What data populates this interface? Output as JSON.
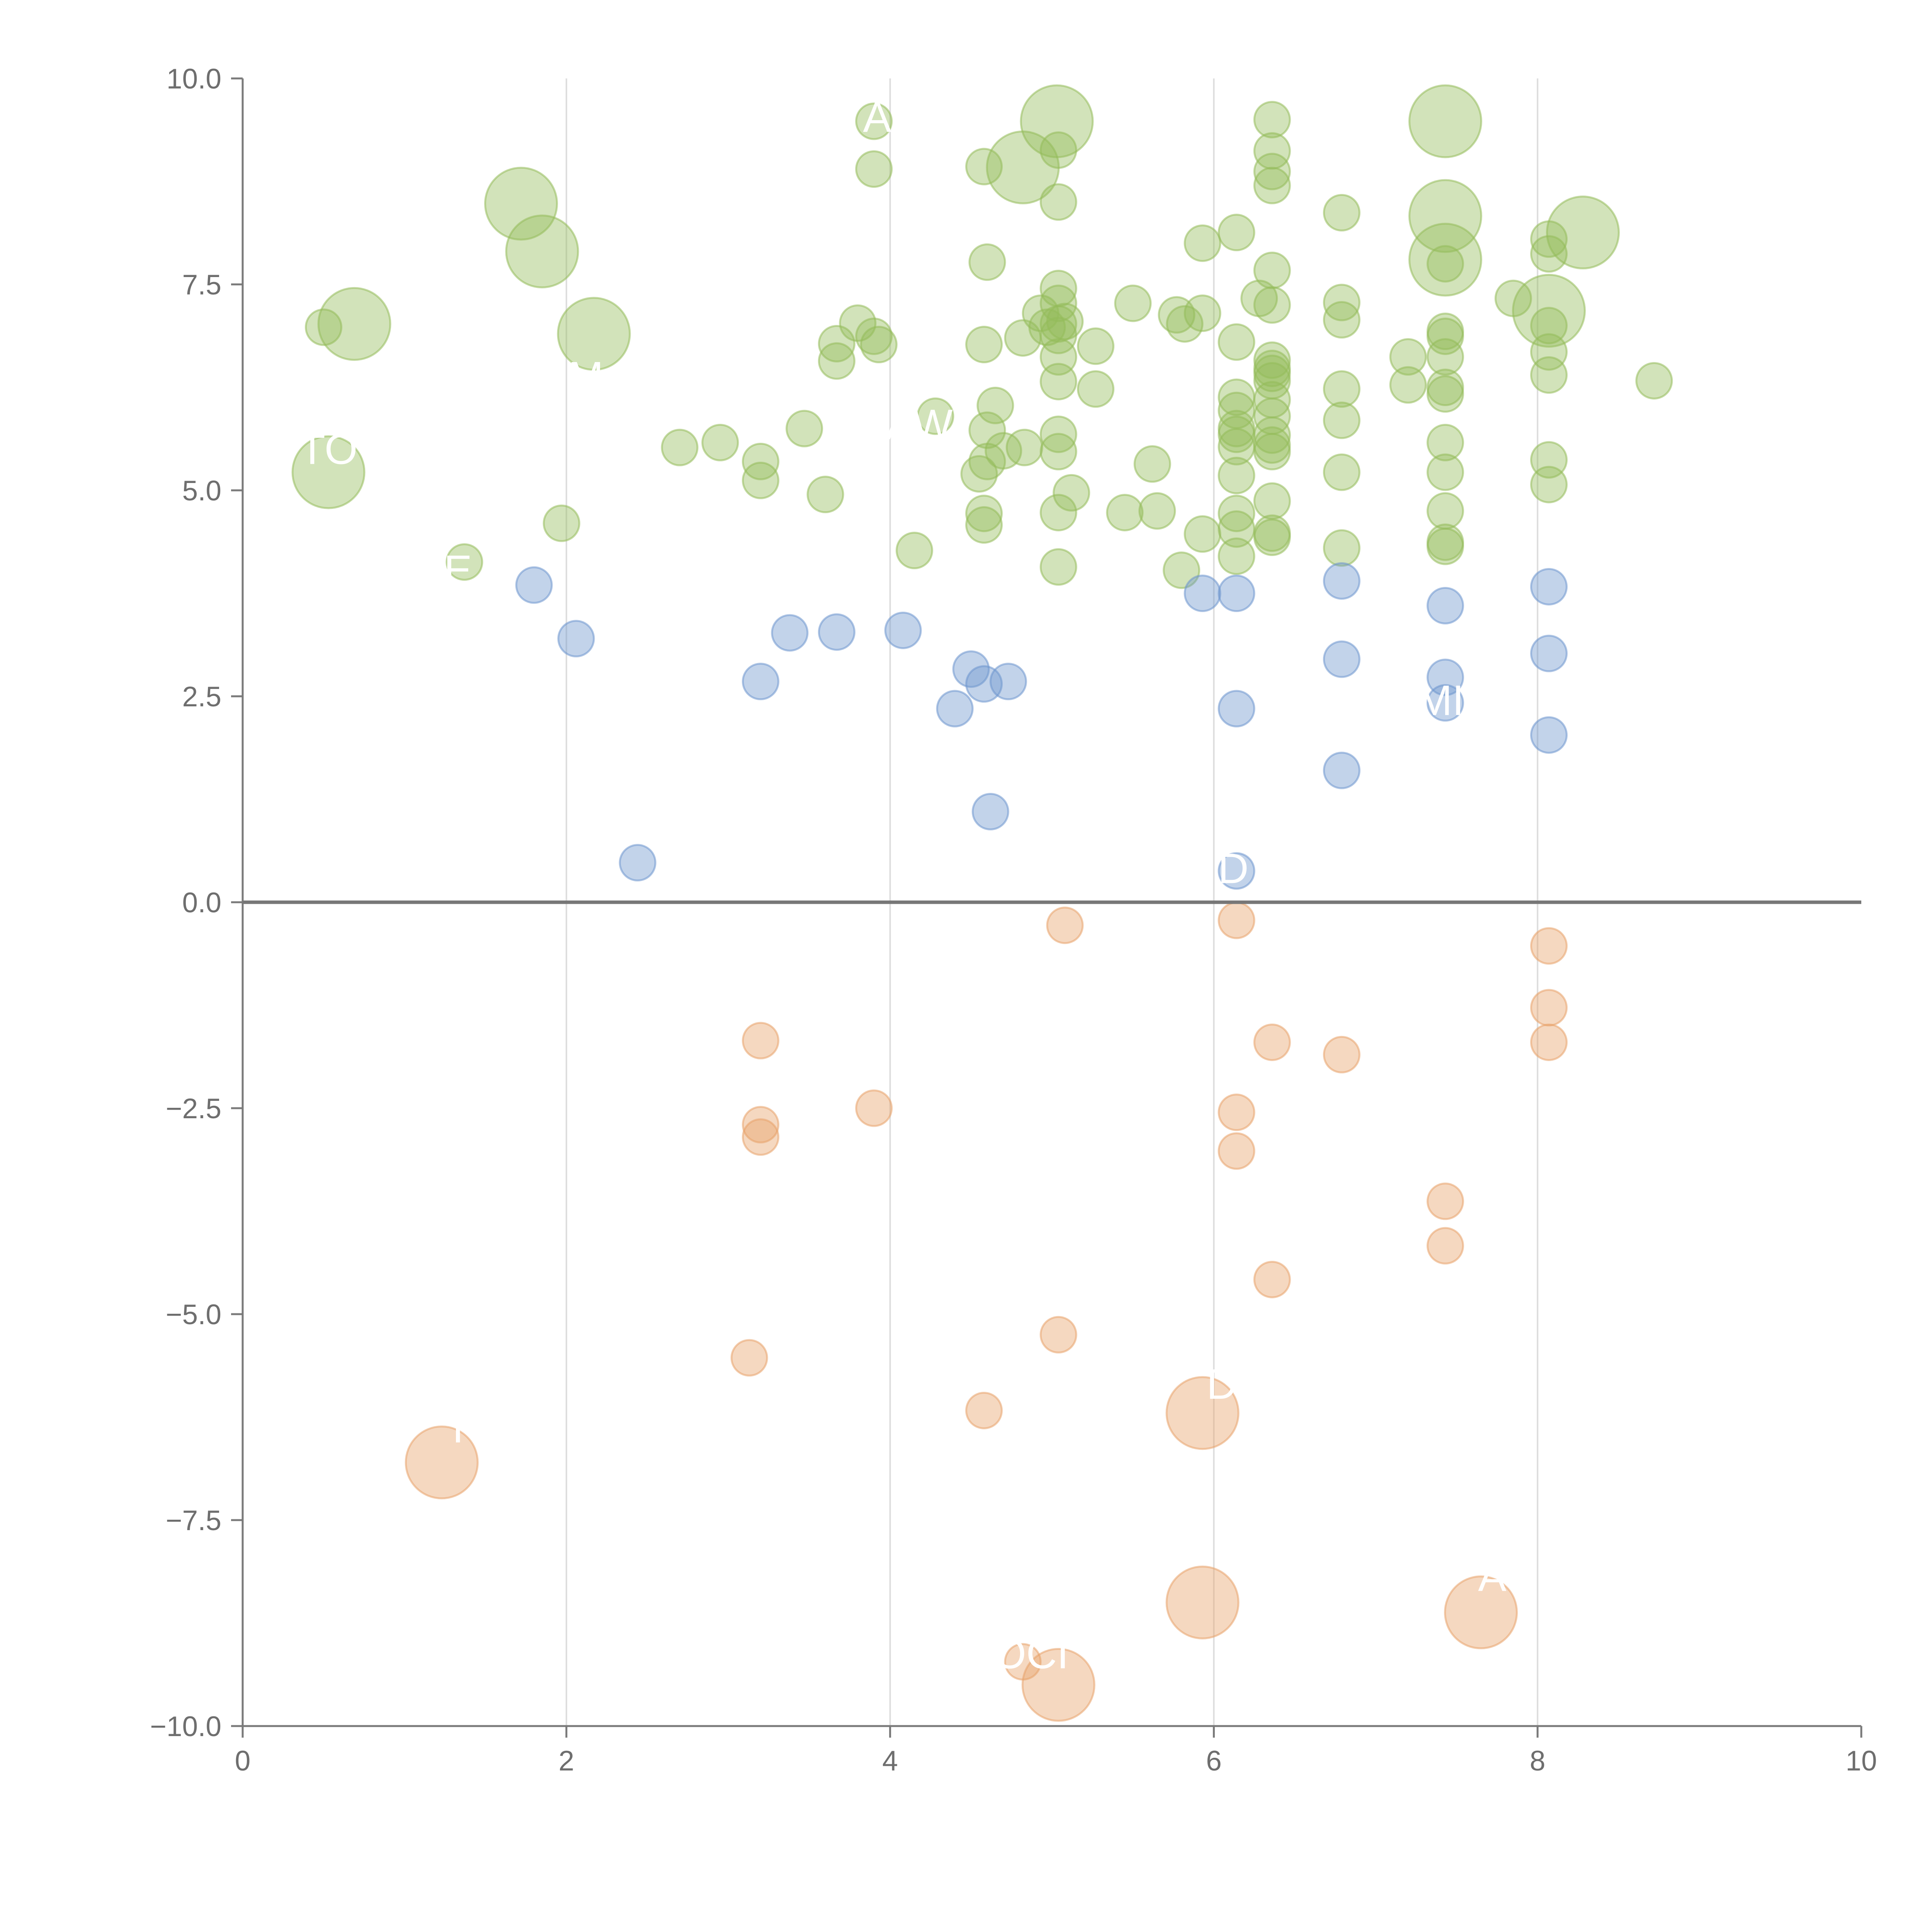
{
  "chart_data": {
    "type": "scatter",
    "title": "",
    "xlabel": "",
    "ylabel": "",
    "xlim": [
      0,
      10
    ],
    "ylim": [
      -10,
      10
    ],
    "x_ticks": [
      "0",
      "2",
      "4",
      "6",
      "8",
      "10"
    ],
    "y_ticks": [
      "10.0",
      "7.5",
      "5.0",
      "2.5",
      "0.0",
      "−2.5",
      "−5.0",
      "−7.5",
      "−10.0"
    ],
    "x_tick_values": [
      0,
      2,
      4,
      6,
      8,
      10
    ],
    "y_tick_values": [
      10,
      7.5,
      5,
      2.5,
      0,
      -2.5,
      -5,
      -7.5,
      -10
    ],
    "vertical_gridlines": [
      2,
      4,
      6,
      8
    ],
    "reference_line": 0,
    "colors": {
      "positive_strong": "#93bc5a",
      "positive_weak": "#6d95cd",
      "negative": "#e8a269",
      "axis": "#7a7a7a",
      "grid": "#dddddd",
      "zero_line": "#777777",
      "label": "#ffffff"
    },
    "series": [
      {
        "name": "positive_strong",
        "color": "#93bc5a",
        "points": [
          {
            "x": 0.5,
            "y": 6.98,
            "r": "s"
          },
          {
            "x": 0.69,
            "y": 7.02,
            "r": "L"
          },
          {
            "x": 0.53,
            "y": 5.22,
            "r": "L"
          },
          {
            "x": 1.37,
            "y": 4.13,
            "r": "s"
          },
          {
            "x": 1.72,
            "y": 8.48,
            "r": "L"
          },
          {
            "x": 1.85,
            "y": 7.9,
            "r": "L"
          },
          {
            "x": 1.97,
            "y": 4.6,
            "r": "s"
          },
          {
            "x": 2.17,
            "y": 6.9,
            "r": "L"
          },
          {
            "x": 2.7,
            "y": 5.52,
            "r": "s"
          },
          {
            "x": 2.95,
            "y": 5.58,
            "r": "s"
          },
          {
            "x": 3.2,
            "y": 5.35,
            "r": "s"
          },
          {
            "x": 3.2,
            "y": 5.12,
            "r": "s"
          },
          {
            "x": 3.47,
            "y": 5.75,
            "r": "s"
          },
          {
            "x": 3.6,
            "y": 4.95,
            "r": "s"
          },
          {
            "x": 3.67,
            "y": 6.78,
            "r": "s"
          },
          {
            "x": 3.67,
            "y": 6.57,
            "r": "s"
          },
          {
            "x": 3.8,
            "y": 7.03,
            "r": "s"
          },
          {
            "x": 3.9,
            "y": 9.48,
            "r": "s"
          },
          {
            "x": 3.9,
            "y": 8.9,
            "r": "s"
          },
          {
            "x": 3.9,
            "y": 6.87,
            "r": "s"
          },
          {
            "x": 3.93,
            "y": 6.77,
            "r": "s"
          },
          {
            "x": 4.15,
            "y": 4.27,
            "r": "s"
          },
          {
            "x": 4.28,
            "y": 5.9,
            "r": "s"
          },
          {
            "x": 4.58,
            "y": 8.93,
            "r": "s"
          },
          {
            "x": 4.6,
            "y": 7.77,
            "r": "s"
          },
          {
            "x": 4.58,
            "y": 6.77,
            "r": "s"
          },
          {
            "x": 4.6,
            "y": 5.73,
            "r": "s"
          },
          {
            "x": 4.6,
            "y": 5.35,
            "r": "s"
          },
          {
            "x": 4.55,
            "y": 5.2,
            "r": "s"
          },
          {
            "x": 4.58,
            "y": 4.72,
            "r": "s"
          },
          {
            "x": 4.58,
            "y": 4.58,
            "r": "s"
          },
          {
            "x": 4.65,
            "y": 6.03,
            "r": "s"
          },
          {
            "x": 4.7,
            "y": 5.48,
            "r": "s"
          },
          {
            "x": 4.82,
            "y": 6.85,
            "r": "s"
          },
          {
            "x": 4.83,
            "y": 5.52,
            "r": "s"
          },
          {
            "x": 4.82,
            "y": 8.92,
            "r": "L"
          },
          {
            "x": 4.93,
            "y": 7.15,
            "r": "s"
          },
          {
            "x": 4.97,
            "y": 6.98,
            "r": "s"
          },
          {
            "x": 5.03,
            "y": 9.48,
            "r": "L"
          },
          {
            "x": 5.04,
            "y": 9.13,
            "r": "s"
          },
          {
            "x": 5.04,
            "y": 8.5,
            "r": "s"
          },
          {
            "x": 5.04,
            "y": 7.45,
            "r": "s"
          },
          {
            "x": 5.04,
            "y": 7.27,
            "r": "s"
          },
          {
            "x": 5.04,
            "y": 7.02,
            "r": "s"
          },
          {
            "x": 5.04,
            "y": 6.88,
            "r": "s"
          },
          {
            "x": 5.04,
            "y": 6.62,
            "r": "s"
          },
          {
            "x": 5.04,
            "y": 6.32,
            "r": "s"
          },
          {
            "x": 5.04,
            "y": 5.68,
            "r": "s"
          },
          {
            "x": 5.04,
            "y": 5.47,
            "r": "s"
          },
          {
            "x": 5.04,
            "y": 4.73,
            "r": "s"
          },
          {
            "x": 5.04,
            "y": 4.07,
            "r": "s"
          },
          {
            "x": 5.08,
            "y": 7.05,
            "r": "s"
          },
          {
            "x": 5.12,
            "y": 4.97,
            "r": "s"
          },
          {
            "x": 5.27,
            "y": 6.75,
            "r": "s"
          },
          {
            "x": 5.27,
            "y": 6.23,
            "r": "s"
          },
          {
            "x": 5.45,
            "y": 4.73,
            "r": "s"
          },
          {
            "x": 5.5,
            "y": 7.27,
            "r": "s"
          },
          {
            "x": 5.62,
            "y": 5.32,
            "r": "s"
          },
          {
            "x": 5.65,
            "y": 4.75,
            "r": "s"
          },
          {
            "x": 5.77,
            "y": 7.13,
            "r": "s"
          },
          {
            "x": 5.82,
            "y": 7.02,
            "r": "s"
          },
          {
            "x": 5.8,
            "y": 4.03,
            "r": "s"
          },
          {
            "x": 5.93,
            "y": 8.0,
            "r": "s"
          },
          {
            "x": 5.93,
            "y": 7.15,
            "r": "s"
          },
          {
            "x": 5.93,
            "y": 4.47,
            "r": "s"
          },
          {
            "x": 6.14,
            "y": 8.13,
            "r": "s"
          },
          {
            "x": 6.14,
            "y": 6.8,
            "r": "s"
          },
          {
            "x": 6.14,
            "y": 6.13,
            "r": "s"
          },
          {
            "x": 6.14,
            "y": 5.97,
            "r": "s"
          },
          {
            "x": 6.14,
            "y": 5.75,
            "r": "s"
          },
          {
            "x": 6.14,
            "y": 5.68,
            "r": "s"
          },
          {
            "x": 6.14,
            "y": 5.53,
            "r": "s"
          },
          {
            "x": 6.14,
            "y": 5.18,
            "r": "s"
          },
          {
            "x": 6.14,
            "y": 4.72,
            "r": "s"
          },
          {
            "x": 6.14,
            "y": 4.53,
            "r": "s"
          },
          {
            "x": 6.14,
            "y": 4.2,
            "r": "s"
          },
          {
            "x": 6.28,
            "y": 7.33,
            "r": "s"
          },
          {
            "x": 6.36,
            "y": 9.5,
            "r": "s"
          },
          {
            "x": 6.36,
            "y": 9.12,
            "r": "s"
          },
          {
            "x": 6.36,
            "y": 8.87,
            "r": "s"
          },
          {
            "x": 6.36,
            "y": 8.7,
            "r": "s"
          },
          {
            "x": 6.36,
            "y": 7.67,
            "r": "s"
          },
          {
            "x": 6.36,
            "y": 7.25,
            "r": "s"
          },
          {
            "x": 6.36,
            "y": 6.58,
            "r": "s"
          },
          {
            "x": 6.36,
            "y": 6.48,
            "r": "s"
          },
          {
            "x": 6.36,
            "y": 6.42,
            "r": "s"
          },
          {
            "x": 6.36,
            "y": 6.33,
            "r": "s"
          },
          {
            "x": 6.36,
            "y": 6.1,
            "r": "s"
          },
          {
            "x": 6.36,
            "y": 5.9,
            "r": "s"
          },
          {
            "x": 6.36,
            "y": 5.67,
            "r": "s"
          },
          {
            "x": 6.36,
            "y": 5.55,
            "r": "s"
          },
          {
            "x": 6.36,
            "y": 5.47,
            "r": "s"
          },
          {
            "x": 6.36,
            "y": 4.87,
            "r": "s"
          },
          {
            "x": 6.36,
            "y": 4.48,
            "r": "s"
          },
          {
            "x": 6.36,
            "y": 4.43,
            "r": "s"
          },
          {
            "x": 6.79,
            "y": 8.37,
            "r": "s"
          },
          {
            "x": 6.79,
            "y": 7.28,
            "r": "s"
          },
          {
            "x": 6.79,
            "y": 7.07,
            "r": "s"
          },
          {
            "x": 6.79,
            "y": 6.23,
            "r": "s"
          },
          {
            "x": 6.79,
            "y": 5.85,
            "r": "s"
          },
          {
            "x": 6.79,
            "y": 5.22,
            "r": "s"
          },
          {
            "x": 6.79,
            "y": 4.3,
            "r": "s"
          },
          {
            "x": 7.2,
            "y": 6.62,
            "r": "s"
          },
          {
            "x": 7.2,
            "y": 6.28,
            "r": "s"
          },
          {
            "x": 7.43,
            "y": 9.48,
            "r": "L"
          },
          {
            "x": 7.43,
            "y": 8.33,
            "r": "L"
          },
          {
            "x": 7.43,
            "y": 7.8,
            "r": "L"
          },
          {
            "x": 7.43,
            "y": 7.75,
            "r": "s"
          },
          {
            "x": 7.43,
            "y": 6.93,
            "r": "s"
          },
          {
            "x": 7.43,
            "y": 6.87,
            "r": "s"
          },
          {
            "x": 7.43,
            "y": 6.62,
            "r": "s"
          },
          {
            "x": 7.43,
            "y": 6.25,
            "r": "s"
          },
          {
            "x": 7.43,
            "y": 6.17,
            "r": "s"
          },
          {
            "x": 7.43,
            "y": 5.58,
            "r": "s"
          },
          {
            "x": 7.43,
            "y": 5.22,
            "r": "s"
          },
          {
            "x": 7.43,
            "y": 4.75,
            "r": "s"
          },
          {
            "x": 7.43,
            "y": 4.37,
            "r": "s"
          },
          {
            "x": 7.43,
            "y": 4.32,
            "r": "s"
          },
          {
            "x": 7.85,
            "y": 7.33,
            "r": "s"
          },
          {
            "x": 8.07,
            "y": 8.05,
            "r": "s"
          },
          {
            "x": 8.07,
            "y": 7.87,
            "r": "s"
          },
          {
            "x": 8.07,
            "y": 7.18,
            "r": "L"
          },
          {
            "x": 8.07,
            "y": 7.0,
            "r": "s"
          },
          {
            "x": 8.07,
            "y": 6.68,
            "r": "s"
          },
          {
            "x": 8.07,
            "y": 6.4,
            "r": "s"
          },
          {
            "x": 8.07,
            "y": 5.37,
            "r": "s"
          },
          {
            "x": 8.07,
            "y": 5.07,
            "r": "s"
          },
          {
            "x": 8.28,
            "y": 8.13,
            "r": "L"
          },
          {
            "x": 8.72,
            "y": 6.33,
            "r": "s"
          }
        ]
      },
      {
        "name": "positive_weak",
        "color": "#6d95cd",
        "points": [
          {
            "x": 1.8,
            "y": 3.85,
            "r": "s"
          },
          {
            "x": 2.06,
            "y": 3.2,
            "r": "s"
          },
          {
            "x": 2.44,
            "y": 0.48,
            "r": "s"
          },
          {
            "x": 3.2,
            "y": 2.68,
            "r": "s"
          },
          {
            "x": 3.38,
            "y": 3.27,
            "r": "s"
          },
          {
            "x": 3.67,
            "y": 3.28,
            "r": "s"
          },
          {
            "x": 4.08,
            "y": 3.3,
            "r": "s"
          },
          {
            "x": 4.4,
            "y": 2.35,
            "r": "s"
          },
          {
            "x": 4.5,
            "y": 2.83,
            "r": "s"
          },
          {
            "x": 4.58,
            "y": 2.65,
            "r": "s"
          },
          {
            "x": 4.62,
            "y": 1.1,
            "r": "s"
          },
          {
            "x": 4.73,
            "y": 2.68,
            "r": "s"
          },
          {
            "x": 5.93,
            "y": 3.75,
            "r": "s"
          },
          {
            "x": 6.14,
            "y": 3.75,
            "r": "s"
          },
          {
            "x": 6.14,
            "y": 2.35,
            "r": "s"
          },
          {
            "x": 6.14,
            "y": 0.38,
            "r": "s"
          },
          {
            "x": 6.79,
            "y": 3.9,
            "r": "s"
          },
          {
            "x": 6.79,
            "y": 2.95,
            "r": "s"
          },
          {
            "x": 6.79,
            "y": 1.6,
            "r": "s"
          },
          {
            "x": 7.43,
            "y": 3.6,
            "r": "s"
          },
          {
            "x": 7.43,
            "y": 2.73,
            "r": "s"
          },
          {
            "x": 7.43,
            "y": 2.42,
            "r": "s"
          },
          {
            "x": 8.07,
            "y": 3.83,
            "r": "s"
          },
          {
            "x": 8.07,
            "y": 3.02,
            "r": "s"
          },
          {
            "x": 8.07,
            "y": 2.03,
            "r": "s"
          }
        ]
      },
      {
        "name": "negative",
        "color": "#e8a269",
        "points": [
          {
            "x": 1.23,
            "y": -6.8,
            "r": "L"
          },
          {
            "x": 3.13,
            "y": -5.53,
            "r": "s"
          },
          {
            "x": 3.2,
            "y": -1.68,
            "r": "s"
          },
          {
            "x": 3.2,
            "y": -2.7,
            "r": "s"
          },
          {
            "x": 3.2,
            "y": -2.85,
            "r": "s"
          },
          {
            "x": 3.9,
            "y": -2.5,
            "r": "s"
          },
          {
            "x": 4.58,
            "y": -6.17,
            "r": "s"
          },
          {
            "x": 4.82,
            "y": -9.22,
            "r": "s"
          },
          {
            "x": 5.04,
            "y": -5.25,
            "r": "s"
          },
          {
            "x": 5.04,
            "y": -9.5,
            "r": "L"
          },
          {
            "x": 5.08,
            "y": -0.28,
            "r": "s"
          },
          {
            "x": 5.93,
            "y": -6.2,
            "r": "L"
          },
          {
            "x": 5.93,
            "y": -8.5,
            "r": "L"
          },
          {
            "x": 6.14,
            "y": -0.22,
            "r": "s"
          },
          {
            "x": 6.14,
            "y": -2.55,
            "r": "s"
          },
          {
            "x": 6.14,
            "y": -3.02,
            "r": "s"
          },
          {
            "x": 6.36,
            "y": -1.7,
            "r": "s"
          },
          {
            "x": 6.36,
            "y": -4.58,
            "r": "s"
          },
          {
            "x": 6.79,
            "y": -1.85,
            "r": "s"
          },
          {
            "x": 7.43,
            "y": -3.63,
            "r": "s"
          },
          {
            "x": 7.43,
            "y": -4.17,
            "r": "s"
          },
          {
            "x": 7.65,
            "y": -8.62,
            "r": "L"
          },
          {
            "x": 8.07,
            "y": -0.53,
            "r": "s"
          },
          {
            "x": 8.07,
            "y": -1.28,
            "r": "s"
          },
          {
            "x": 8.07,
            "y": -1.7,
            "r": "s"
          }
        ]
      }
    ],
    "annotations": [
      {
        "text": "A",
        "x": 3.92,
        "y": 9.53
      },
      {
        "text": "M",
        "x": 2.12,
        "y": 6.38
      },
      {
        "text": "TO",
        "x": 0.53,
        "y": 5.5
      },
      {
        "text": "E",
        "x": 1.33,
        "y": 4.03
      },
      {
        "text": "AW",
        "x": 4.18,
        "y": 5.8
      },
      {
        "text": "D",
        "x": 6.12,
        "y": 0.41
      },
      {
        "text": "MI",
        "x": 7.4,
        "y": 2.45
      },
      {
        "text": "D",
        "x": 6.05,
        "y": -5.85
      },
      {
        "text": "A",
        "x": 7.72,
        "y": -8.18
      },
      {
        "text": "OCI",
        "x": 4.87,
        "y": -9.12
      },
      {
        "text": "I",
        "x": 1.33,
        "y": -6.38
      }
    ]
  }
}
